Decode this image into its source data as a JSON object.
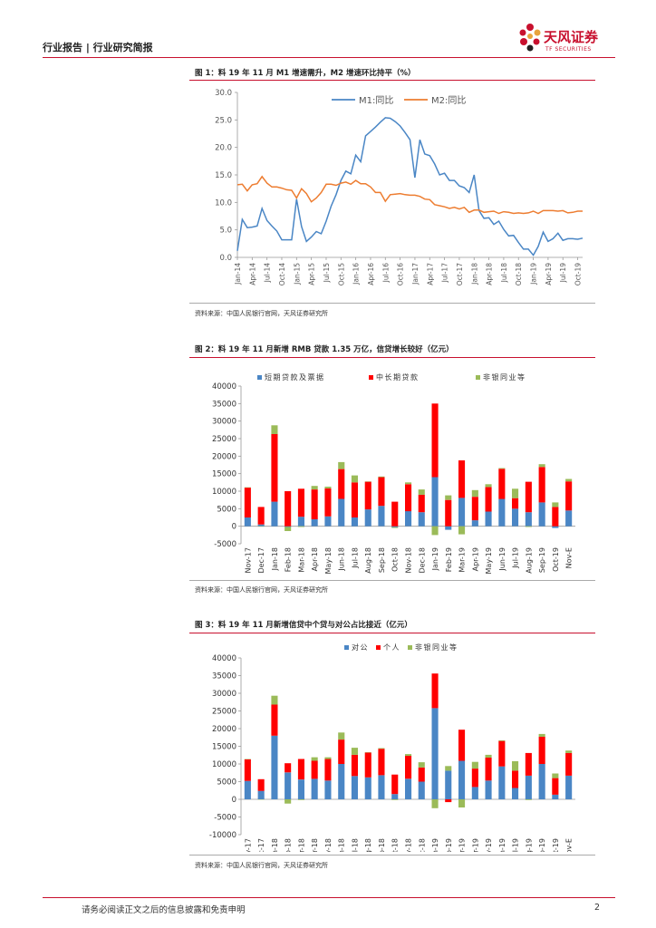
{
  "header": {
    "breadcrumb": "行业报告 | 行业研究简报",
    "logo_cn": "天风证券",
    "logo_en": "TF SECURITIES"
  },
  "colors": {
    "brand_red": "#c8102e",
    "m1": "#4a86c5",
    "m2": "#ed7d31",
    "blue": "#4a86c5",
    "red": "#ff0000",
    "green": "#9bbb59"
  },
  "figures": [
    {
      "title": "图 1：料 19 年 11 月 M1 增速需升，M2 增速环比持平（%）",
      "source": "资料来源：中国人民银行官网，天风证券研究所"
    },
    {
      "title": "图 2：料 19 年 11 月新增 RMB 贷款 1.35 万亿，信贷增长较好（亿元）",
      "source": "资料来源：中国人民银行官网，天风证券研究所"
    },
    {
      "title": "图 3：料 19 年 11 月新增信贷中个贷与对公占比接近（亿元）",
      "source": "资料来源：中国人民银行官网，天风证券研究所"
    }
  ],
  "footer": {
    "disclaimer": "请务必阅读正文之后的信息披露和免责申明",
    "page": "2"
  },
  "chart_data": [
    {
      "type": "line",
      "title": "料 19 年 11 月 M1 增速需升，M2 增速环比持平（%）",
      "ylim": [
        0,
        30
      ],
      "yticks": [
        "0.0",
        "5.0",
        "10.0",
        "15.0",
        "20.0",
        "25.0",
        "30.0"
      ],
      "xticks": [
        "Jan-14",
        "Apr-14",
        "Jul-14",
        "Oct-14",
        "Jan-15",
        "Apr-15",
        "Jul-15",
        "Oct-15",
        "Jan-16",
        "Apr-16",
        "Jul-16",
        "Oct-16",
        "Jan-17",
        "Apr-17",
        "Jul-17",
        "Oct-17",
        "Jan-18",
        "Apr-18",
        "Jul-18",
        "Oct-18",
        "Jan-19",
        "Apr-19",
        "Jul-19",
        "Oct-19"
      ],
      "series": [
        {
          "name": "M1:同比",
          "values": [
            1.2,
            6.9,
            5.4,
            5.5,
            5.7,
            8.9,
            6.7,
            5.7,
            4.8,
            3.2,
            3.2,
            3.2,
            10.6,
            5.6,
            2.9,
            3.7,
            4.7,
            4.3,
            6.6,
            9.3,
            11.4,
            14.0,
            15.7,
            15.2,
            18.6,
            17.4,
            22.1,
            22.9,
            23.7,
            24.6,
            25.4,
            25.3,
            24.7,
            23.9,
            22.7,
            21.4,
            14.5,
            21.4,
            18.8,
            18.5,
            17.0,
            15.0,
            15.3,
            14.0,
            14.0,
            13.0,
            12.7,
            11.8,
            15.0,
            8.5,
            7.1,
            7.2,
            6.0,
            6.6,
            5.1,
            3.9,
            4.0,
            2.7,
            1.5,
            1.5,
            0.4,
            2.0,
            4.6,
            2.9,
            3.4,
            4.4,
            3.1,
            3.4,
            3.4,
            3.3,
            3.5
          ],
          "color": "#4a86c5"
        },
        {
          "name": "M2:同比",
          "values": [
            13.2,
            13.3,
            12.1,
            13.2,
            13.4,
            14.7,
            13.5,
            12.8,
            12.8,
            12.6,
            12.3,
            12.2,
            10.8,
            12.5,
            11.6,
            10.1,
            10.8,
            11.8,
            13.3,
            13.3,
            13.1,
            13.5,
            13.7,
            13.3,
            14.0,
            13.4,
            13.4,
            12.8,
            11.8,
            11.8,
            10.2,
            11.4,
            11.5,
            11.6,
            11.4,
            11.3,
            11.3,
            11.1,
            10.6,
            10.5,
            9.6,
            9.4,
            9.2,
            8.9,
            9.1,
            8.8,
            9.1,
            8.2,
            8.6,
            8.6,
            8.2,
            8.3,
            8.4,
            8.0,
            8.3,
            8.2,
            8.0,
            8.1,
            8.0,
            8.1,
            8.4,
            8.0,
            8.5,
            8.5,
            8.5,
            8.4,
            8.5,
            8.1,
            8.2,
            8.4,
            8.4
          ],
          "color": "#ed7d31"
        }
      ]
    },
    {
      "type": "bar",
      "stacked": true,
      "title": "料 19 年 11 月新增 RMB 贷款 1.35 万亿，信贷增长较好（亿元）",
      "ylim": [
        -5000,
        40000
      ],
      "yticks": [
        "-5000",
        "0",
        "5000",
        "10000",
        "15000",
        "20000",
        "25000",
        "30000",
        "35000",
        "40000"
      ],
      "categories": [
        "Nov-17",
        "Dec-17",
        "Jan-18",
        "Feb-18",
        "Mar-18",
        "Apr-18",
        "May-18",
        "Jun-18",
        "Jul-18",
        "Aug-18",
        "Sep-18",
        "Oct-18",
        "Nov-18",
        "Dec-18",
        "Jan-19",
        "Feb-19",
        "Mar-19",
        "Apr-19",
        "May-19",
        "Jun-19",
        "Jul-19",
        "Aug-19",
        "Sep-19",
        "Oct-19",
        "Nov-E"
      ],
      "xlabels": [
        "Nov-17",
        "",
        "Dec-17",
        "",
        "Jan-18",
        "",
        "Feb-18",
        "",
        "Mar-18",
        "",
        "Apr-18",
        "",
        "May-18",
        "",
        "Jun-18",
        "",
        "Jul-18",
        "",
        "Aug-18",
        "",
        "Sep-18",
        "",
        "Oct-18",
        "",
        "Nov-18",
        "",
        "Dec-18",
        "",
        "Jan-19",
        "",
        "Feb-19",
        "",
        "Mar-19",
        "",
        "Apr-19",
        "",
        "May-19",
        "",
        "Jun-19",
        "",
        "Jul-19",
        "",
        "Aug-19",
        "",
        "Sep-19",
        "",
        "Oct-19",
        "",
        "Nov-E"
      ],
      "series": [
        {
          "name": "短期贷款及票据",
          "values": [
            2500,
            500,
            7000,
            -200,
            2700,
            2000,
            2800,
            7800,
            2500,
            4800,
            5800,
            -300,
            4300,
            4000,
            14000,
            -1000,
            8100,
            1700,
            4200,
            7800,
            5000,
            4000,
            6800,
            -500,
            4500
          ],
          "color": "#4a86c5"
        },
        {
          "name": "中长期贷款",
          "values": [
            8500,
            5000,
            19300,
            10000,
            8000,
            8500,
            8000,
            8500,
            10000,
            7900,
            8200,
            7000,
            7700,
            5000,
            21000,
            7500,
            10700,
            6700,
            7000,
            8600,
            3000,
            8700,
            10100,
            5500,
            8300
          ],
          "color": "#ff0000"
        },
        {
          "name": "非银同业等",
          "values": [
            100,
            -100,
            2500,
            -1200,
            -200,
            1000,
            500,
            2000,
            2000,
            100,
            200,
            -200,
            500,
            1500,
            -2500,
            1300,
            -2300,
            1900,
            800,
            200,
            2700,
            -200,
            800,
            1300,
            700
          ],
          "color": "#9bbb59"
        }
      ]
    },
    {
      "type": "bar",
      "stacked": true,
      "title": "料 19 年 11 月新增信贷中个贷与对公占比接近（亿元）",
      "ylim": [
        -10000,
        40000
      ],
      "yticks": [
        "-10000",
        "-5000",
        "0",
        "5000",
        "10000",
        "15000",
        "20000",
        "25000",
        "30000",
        "35000",
        "40000"
      ],
      "categories": [
        "Nov-17",
        "Dec-17",
        "Jan-18",
        "Feb-18",
        "Mar-18",
        "Apr-18",
        "May-18",
        "Jun-18",
        "Jul-18",
        "Aug-18",
        "Sep-18",
        "Oct-18",
        "Nov-18",
        "Dec-18",
        "Jan-19",
        "Feb-19",
        "Mar-19",
        "Apr-19",
        "May-19",
        "Jun-19",
        "Jul-19",
        "Aug-19",
        "Sep-19",
        "Oct-19",
        "Nov-E"
      ],
      "xlabels": [
        "Nov-17",
        "",
        "Dec-17",
        "",
        "Jan-18",
        "",
        "Feb-18",
        "",
        "Mar-18",
        "",
        "Apr-18",
        "",
        "May-18",
        "",
        "Jun-18",
        "",
        "Jul-18",
        "",
        "Aug-18",
        "",
        "Sep-18",
        "",
        "Oct-18",
        "",
        "Nov-18",
        "",
        "Dec-18",
        "",
        "Jan-19",
        "",
        "Feb-19",
        "",
        "Mar-19",
        "",
        "Apr-19",
        "",
        "May-19",
        "",
        "Jun-19",
        "",
        "Jul-19",
        "",
        "Aug-19",
        "",
        "Sep-19",
        "",
        "Oct-19",
        "",
        "Nov-E"
      ],
      "series": [
        {
          "name": "对公",
          "values": [
            5200,
            2400,
            18000,
            7600,
            5600,
            5800,
            5300,
            10000,
            6600,
            6200,
            6800,
            1500,
            5800,
            5000,
            25800,
            8100,
            10900,
            3500,
            5300,
            9300,
            3200,
            6700,
            10000,
            1300,
            6700
          ],
          "color": "#4a86c5"
        },
        {
          "name": "个人",
          "values": [
            6100,
            3300,
            8800,
            2600,
            5800,
            5100,
            6100,
            6900,
            6000,
            7000,
            7500,
            5500,
            6500,
            4000,
            9800,
            -800,
            8800,
            5200,
            6500,
            7200,
            4900,
            6400,
            7700,
            4700,
            6400
          ],
          "color": "#ff0000"
        },
        {
          "name": "非银同业等",
          "values": [
            100,
            -100,
            2500,
            -1200,
            -200,
            1000,
            500,
            2000,
            2000,
            100,
            200,
            -200,
            500,
            1500,
            -2500,
            1300,
            -2300,
            1900,
            800,
            200,
            2700,
            -200,
            800,
            1300,
            700
          ],
          "color": "#9bbb59"
        }
      ]
    }
  ]
}
